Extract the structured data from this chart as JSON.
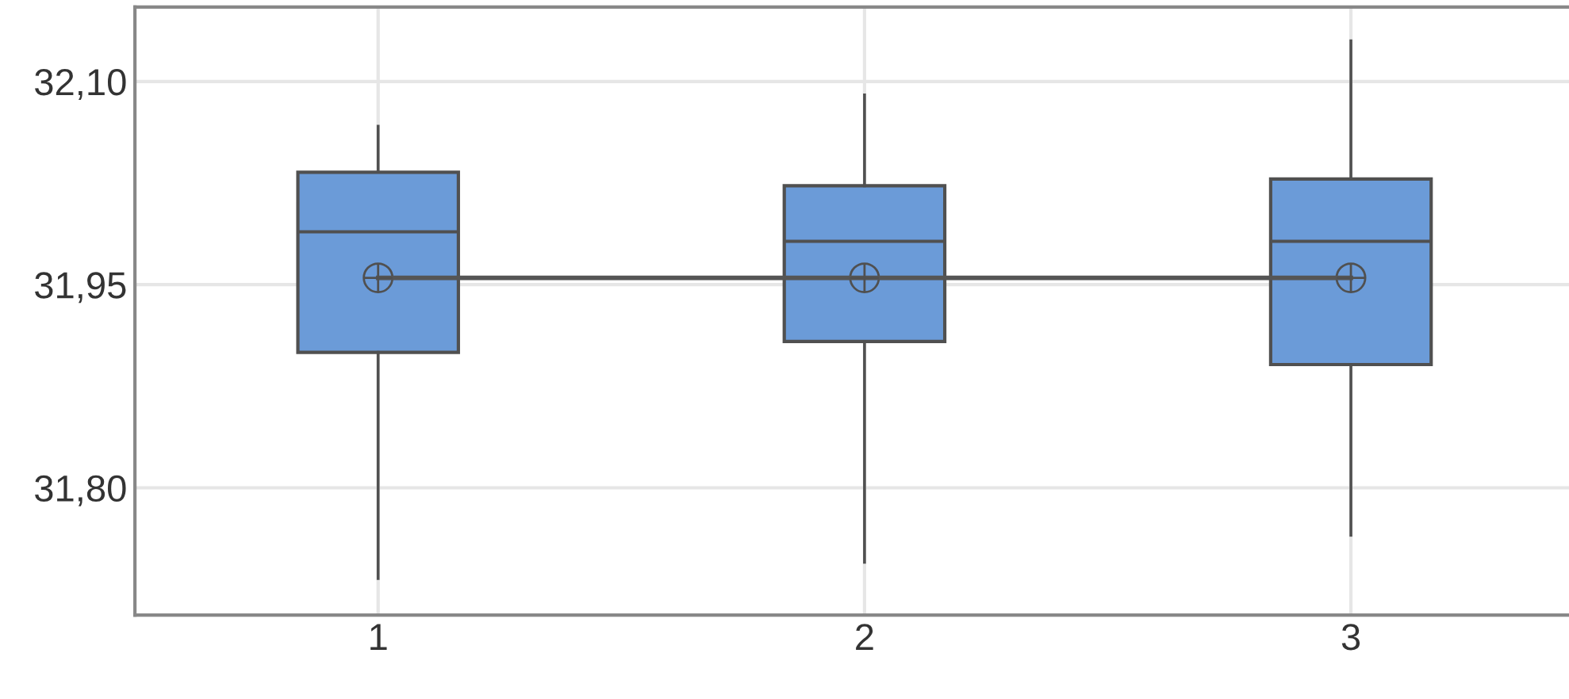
{
  "chart_data": {
    "type": "box",
    "categories": [
      "1",
      "2",
      "3"
    ],
    "series": [
      {
        "color": "#6b9bd8",
        "boxes": [
          {
            "low": 31.733,
            "q1": 31.9,
            "median": 31.989,
            "q3": 32.033,
            "high": 32.067,
            "mean": 31.955
          },
          {
            "low": 31.745,
            "q1": 31.908,
            "median": 31.982,
            "q3": 32.023,
            "high": 32.09,
            "mean": 31.955
          },
          {
            "low": 31.765,
            "q1": 31.891,
            "median": 31.982,
            "q3": 32.028,
            "high": 32.13,
            "mean": 31.955
          }
        ]
      },
      {
        "type": "line",
        "color": "#555555",
        "values": [
          31.955,
          31.955,
          31.955
        ]
      }
    ],
    "ylim": [
      31.706,
      32.155
    ],
    "yticks": [
      {
        "value": 31.8,
        "label": "31,80"
      },
      {
        "value": 31.95,
        "label": "31,95"
      },
      {
        "value": 32.1,
        "label": "32,10"
      }
    ],
    "grid": true
  }
}
